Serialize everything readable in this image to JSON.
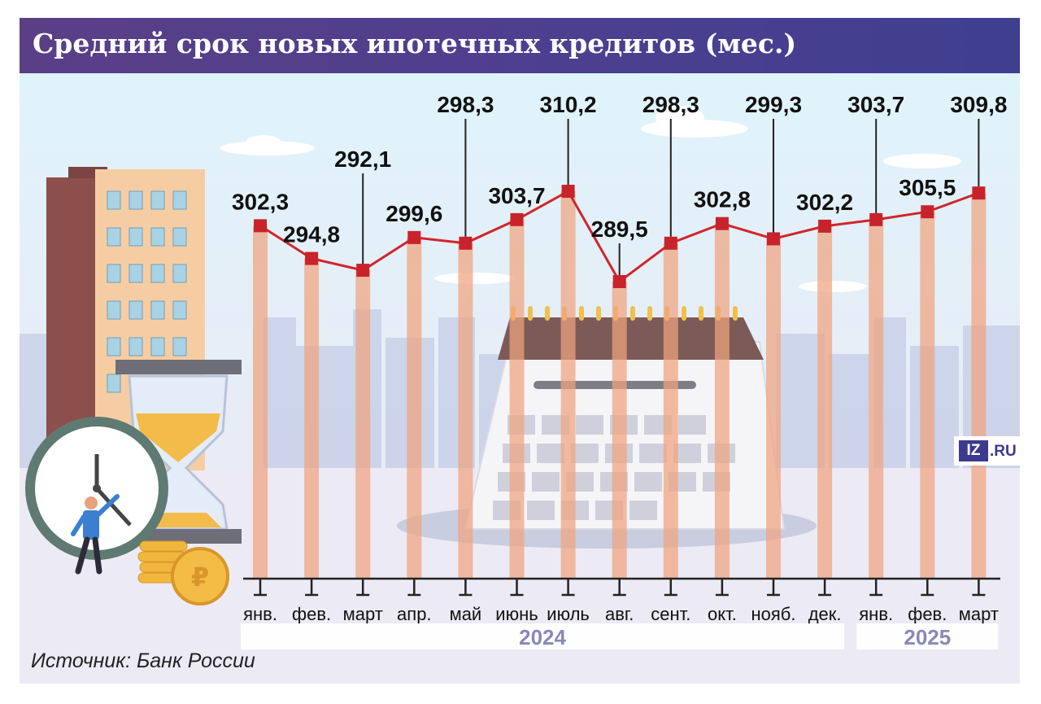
{
  "title": "Средний срок новых ипотечных кредитов (мес.)",
  "source": "Источник: Банк России",
  "logo": {
    "mark": "IZ",
    "suffix": ".RU"
  },
  "colors": {
    "title_bg": "#4e3f8f",
    "line": "#d0262b",
    "marker": "#c8232a",
    "column": "#f0a47e",
    "year_text": "#8a88b8"
  },
  "chart_data": {
    "type": "line",
    "title": "Средний срок новых ипотечных кредитов (мес.)",
    "categories": [
      "янв.",
      "фев.",
      "март",
      "апр.",
      "май",
      "июнь",
      "июль",
      "авг.",
      "сент.",
      "окт.",
      "нояб.",
      "дек.",
      "янв.",
      "фев.",
      "март"
    ],
    "groups": [
      {
        "label": "2024",
        "count": 12
      },
      {
        "label": "2025",
        "count": 3
      }
    ],
    "series": [
      {
        "values": [
          302.3,
          294.8,
          292.1,
          299.6,
          298.3,
          303.7,
          310.2,
          289.5,
          298.3,
          302.8,
          299.3,
          302.2,
          303.7,
          305.5,
          309.8
        ]
      }
    ],
    "value_labels": [
      "302,3",
      "294,8",
      "292,1",
      "299,6",
      "298,3",
      "303,7",
      "310,2",
      "289,5",
      "298,3",
      "302,8",
      "299,3",
      "302,2",
      "303,7",
      "305,5",
      "309,8"
    ],
    "ylim": [
      285,
      312
    ],
    "grid": false,
    "legend": "none",
    "xlabel": "",
    "ylabel": ""
  }
}
